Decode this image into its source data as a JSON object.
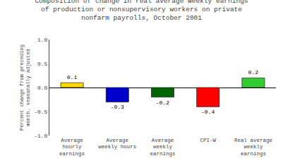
{
  "chart_data": {
    "type": "bar",
    "title": "Composition of change in real average weekly earnings\nof production or nonsupervisory workers on private\nnonfarm payrolls, October 2001",
    "categories": [
      "Average\nhourly\nearnings",
      "Average\nweekly hours",
      "Average\nweekly\nearnings",
      "CPI-W",
      "Real average\nweekly\nearnings"
    ],
    "values": [
      0.1,
      -0.3,
      -0.2,
      -0.4,
      0.2
    ],
    "colors": [
      "#FFD700",
      "#0000CD",
      "#006400",
      "#FF0000",
      "#32CD32"
    ],
    "ylabel": "Percent change from preceding\nmonth, seasonally adjusted",
    "ylim": [
      -1.0,
      1.0
    ],
    "yticks": [
      {
        "value": -1.0,
        "label": "-1.0"
      },
      -0.5,
      {
        "value": 0.0,
        "label": "0.0"
      },
      0.5,
      {
        "value": 1.0,
        "label": "1.0"
      }
    ],
    "grid": false,
    "data_labels": true
  }
}
